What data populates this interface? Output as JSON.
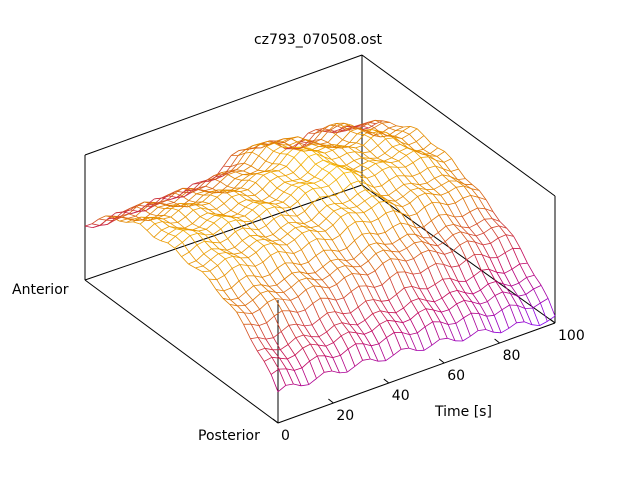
{
  "chart_data": {
    "type": "surface",
    "title": "cz793_070508.ost",
    "xlabel": "Time [s]",
    "ylabel_top": "Anterior",
    "ylabel_bottom": "Posterior",
    "x_ticks": [
      "0",
      "20",
      "40",
      "60",
      "80",
      "100"
    ],
    "xlim": [
      0,
      100
    ],
    "grid": false,
    "colormap": [
      "#8000ff",
      "#c00060",
      "#e08000",
      "#ffd000"
    ],
    "note": ""
  }
}
